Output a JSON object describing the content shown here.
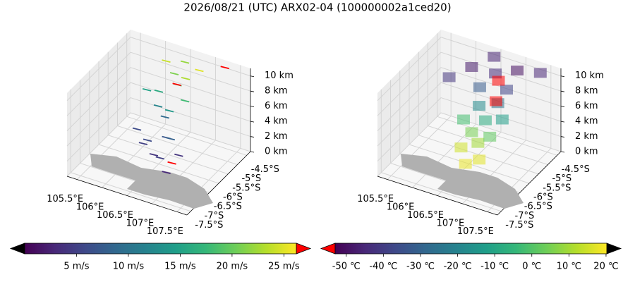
{
  "title": "2026/08/21 (UTC) ARX02-04 (100000002a1ced20)",
  "chart_data": [
    {
      "type": "quiver3d",
      "xlim": [
        105.3,
        107.7
      ],
      "ylim": [
        -7.7,
        -4.3
      ],
      "zlim": [
        0,
        11
      ],
      "xticks": [
        {
          "value": 105.5,
          "label": "105.5°E"
        },
        {
          "value": 106,
          "label": "106°E"
        },
        {
          "value": 106.5,
          "label": "106.5°E"
        },
        {
          "value": 107,
          "label": "107°E"
        },
        {
          "value": 107.5,
          "label": "107.5°E"
        }
      ],
      "yticks": [
        {
          "value": -4.5,
          "label": "-4.5°S"
        },
        {
          "value": -5,
          "label": "-5°S"
        },
        {
          "value": -5.5,
          "label": "-5.5°S"
        },
        {
          "value": -6,
          "label": "-6°S"
        },
        {
          "value": -6.5,
          "label": "-6.5°S"
        },
        {
          "value": -7,
          "label": "-7°S"
        },
        {
          "value": -7.5,
          "label": "-7.5°S"
        }
      ],
      "zticks": [
        {
          "value": 0,
          "label": "0 km"
        },
        {
          "value": 2,
          "label": "2 km"
        },
        {
          "value": 4,
          "label": "4 km"
        },
        {
          "value": 6,
          "label": "6 km"
        },
        {
          "value": 8,
          "label": "8 km"
        },
        {
          "value": 10,
          "label": "10 km"
        }
      ],
      "colormap": "viridis",
      "under_color": "#000000",
      "over_color": "#ff0000",
      "clim": [
        0,
        26.2
      ],
      "cticks": [
        {
          "value": 5,
          "label": "5 m/s"
        },
        {
          "value": 10,
          "label": "10 m/s"
        },
        {
          "value": 15,
          "label": "15 m/s"
        },
        {
          "value": 20,
          "label": "20 m/s"
        },
        {
          "value": 25,
          "label": "25 m/s"
        }
      ],
      "points": {
        "lon": [
          106.4,
          106.6,
          106.2,
          106.8,
          106.5,
          106.3,
          106.7,
          106.1,
          106.9,
          106.4,
          106.3,
          106.6,
          106.2,
          106.8,
          106.5,
          106.0,
          106.4,
          106.7,
          106.2,
          106.9,
          106.5,
          106.6,
          107.3,
          106.8
        ],
        "lat": [
          -6.0,
          -6.2,
          -5.8,
          -6.4,
          -5.6,
          -6.3,
          -5.9,
          -6.1,
          -6.0,
          -5.4,
          -5.5,
          -5.7,
          -5.2,
          -5.4,
          -5.0,
          -5.3,
          -4.9,
          -5.1,
          -4.8,
          -4.9,
          -4.6,
          -5.3,
          -4.6,
          -6.1
        ],
        "alt": [
          1.0,
          1.5,
          2.0,
          0.5,
          2.5,
          3.0,
          3.5,
          4.0,
          2.0,
          4.5,
          6.0,
          6.5,
          7.0,
          7.5,
          8.0,
          7.0,
          9.0,
          9.5,
          10.0,
          10.5,
          10.0,
          9.0,
          11.0,
          1.0
        ],
        "speed": [
          4,
          5,
          6,
          3,
          7,
          5,
          8,
          6,
          4,
          9,
          12,
          14,
          16,
          18,
          19,
          15,
          21,
          23,
          24,
          25,
          22,
          27,
          28,
          27
        ]
      }
    },
    {
      "type": "voxel3d",
      "xlim": [
        105.3,
        107.7
      ],
      "ylim": [
        -7.7,
        -4.3
      ],
      "zlim": [
        0,
        11
      ],
      "xticks": [
        {
          "value": 105.5,
          "label": "105.5°E"
        },
        {
          "value": 106,
          "label": "106°E"
        },
        {
          "value": 106.5,
          "label": "106.5°E"
        },
        {
          "value": 107,
          "label": "107°E"
        },
        {
          "value": 107.5,
          "label": "107.5°E"
        }
      ],
      "yticks": [
        {
          "value": -4.5,
          "label": "-4.5°S"
        },
        {
          "value": -5,
          "label": "-5°S"
        },
        {
          "value": -5.5,
          "label": "-5.5°S"
        },
        {
          "value": -6,
          "label": "-6°S"
        },
        {
          "value": -6.5,
          "label": "-6.5°S"
        },
        {
          "value": -7,
          "label": "-7°S"
        },
        {
          "value": -7.5,
          "label": "-7.5°S"
        }
      ],
      "zticks": [
        {
          "value": 0,
          "label": "0 km"
        },
        {
          "value": 2,
          "label": "2 km"
        },
        {
          "value": 4,
          "label": "4 km"
        },
        {
          "value": 6,
          "label": "6 km"
        },
        {
          "value": 8,
          "label": "8 km"
        },
        {
          "value": 10,
          "label": "10 km"
        }
      ],
      "colormap": "viridis",
      "under_color": "#ff0000",
      "over_color": "#000000",
      "clim": [
        -53,
        20.2
      ],
      "cticks": [
        {
          "value": -50,
          "label": "-50 ℃"
        },
        {
          "value": -40,
          "label": "-40 ℃"
        },
        {
          "value": -30,
          "label": "-30 ℃"
        },
        {
          "value": -20,
          "label": "-20 ℃"
        },
        {
          "value": -10,
          "label": "-10 ℃"
        },
        {
          "value": 0,
          "label": "0 ℃"
        },
        {
          "value": 10,
          "label": "10 ℃"
        },
        {
          "value": 20,
          "label": "20 ℃"
        }
      ],
      "points": {
        "lon": [
          106.5,
          106.7,
          106.3,
          106.6,
          106.4,
          106.8,
          106.2,
          106.6,
          106.9,
          106.4,
          106.7,
          106.3,
          106.8,
          106.5,
          106.1,
          106.9,
          106.6,
          106.7,
          106.4,
          107.4,
          105.8
        ],
        "lat": [
          -6.2,
          -6.0,
          -5.9,
          -5.8,
          -5.6,
          -5.7,
          -5.5,
          -5.4,
          -5.3,
          -5.2,
          -5.0,
          -4.9,
          -4.8,
          -4.6,
          -4.8,
          -4.5,
          -4.7,
          -5.1,
          -4.4,
          -4.6,
          -5.2
        ],
        "alt": [
          0.5,
          1.0,
          1.5,
          2.5,
          3.0,
          3.5,
          4.0,
          4.5,
          5.0,
          5.5,
          6.0,
          7.0,
          7.5,
          8.5,
          9.0,
          9.5,
          8.0,
          6.5,
          10.0,
          10.5,
          8.0
        ],
        "temperature": [
          18,
          17,
          15,
          10,
          5,
          2,
          -2,
          -8,
          -12,
          -18,
          -25,
          -32,
          -38,
          -44,
          -48,
          -50,
          -55,
          -56,
          -46,
          -45,
          -42
        ]
      }
    }
  ]
}
